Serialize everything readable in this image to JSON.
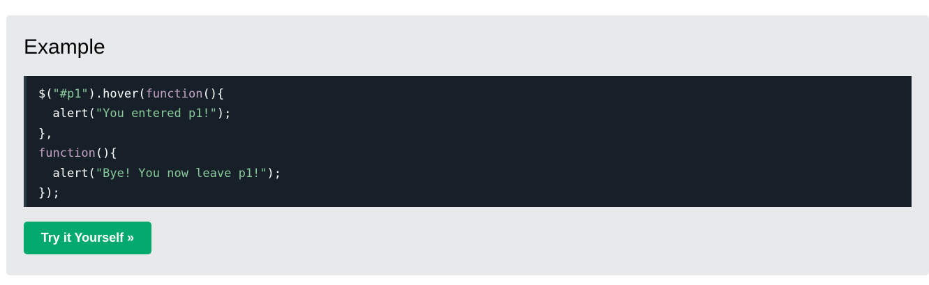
{
  "example": {
    "title": "Example",
    "code_lines": [
      [
        {
          "t": "$(",
          "k": "plain"
        },
        {
          "t": "\"#p1\"",
          "k": "str"
        },
        {
          "t": ").hover(",
          "k": "plain"
        },
        {
          "t": "function",
          "k": "kw"
        },
        {
          "t": "(){",
          "k": "plain"
        }
      ],
      [
        {
          "t": "  alert(",
          "k": "plain"
        },
        {
          "t": "\"You entered p1!\"",
          "k": "str"
        },
        {
          "t": ");",
          "k": "plain"
        }
      ],
      [
        {
          "t": "},",
          "k": "plain"
        }
      ],
      [
        {
          "t": "function",
          "k": "kw"
        },
        {
          "t": "(){",
          "k": "plain"
        }
      ],
      [
        {
          "t": "  alert(",
          "k": "plain"
        },
        {
          "t": "\"Bye! You now leave p1!\"",
          "k": "str"
        },
        {
          "t": ");",
          "k": "plain"
        }
      ],
      [
        {
          "t": "});",
          "k": "plain"
        }
      ]
    ],
    "try_button_label": "Try it Yourself »"
  },
  "colors": {
    "panel_bg": "#e7e9eb",
    "code_bg": "#172029",
    "string": "#88c999",
    "keyword": "#c5a5c5",
    "button_bg": "#04aa6d"
  }
}
